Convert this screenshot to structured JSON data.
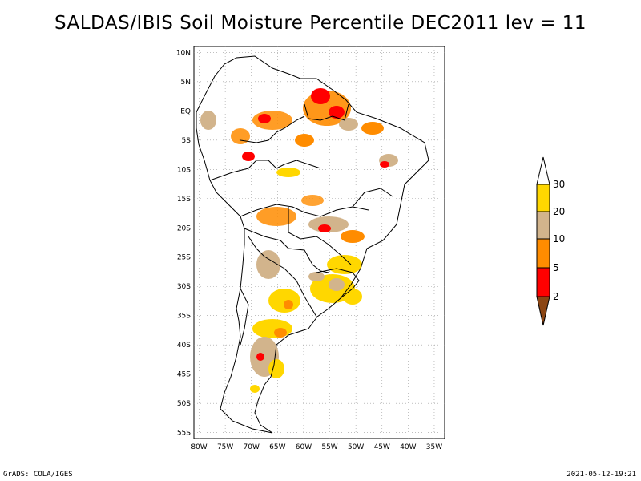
{
  "title": "SALDAS/IBIS Soil Moisture Percentile DEC2011 lev = 11",
  "footer": {
    "left": "GrADS: COLA/IGES",
    "right": "2021-05-12-19:21"
  },
  "map": {
    "lon_ticks": [
      "80W",
      "75W",
      "70W",
      "65W",
      "60W",
      "55W",
      "50W",
      "45W",
      "40W",
      "35W"
    ],
    "lat_ticks": [
      "10N",
      "5N",
      "EQ",
      "5S",
      "10S",
      "15S",
      "20S",
      "25S",
      "30S",
      "35S",
      "40S",
      "45S",
      "50S",
      "55S"
    ],
    "lon_values": [
      -80,
      -75,
      -70,
      -65,
      -60,
      -55,
      -50,
      -45,
      -40,
      -35
    ],
    "lat_values": [
      10,
      5,
      0,
      -5,
      -10,
      -15,
      -20,
      -25,
      -30,
      -35,
      -40,
      -45,
      -50,
      -55
    ],
    "lon_range": [
      -81,
      -33
    ],
    "lat_range": [
      -56,
      11
    ],
    "grid": true
  },
  "colorbar": {
    "labels": [
      "2",
      "5",
      "10",
      "20",
      "30"
    ],
    "bins": [
      {
        "range": "<2",
        "color": "#8B4513"
      },
      {
        "range": "2-5",
        "color": "#ff0000"
      },
      {
        "range": "5-10",
        "color": "#ff8c00"
      },
      {
        "range": "10-20",
        "color": "#d2b48c"
      },
      {
        "range": "20-30",
        "color": "#ffd700"
      },
      {
        "range": ">30",
        "color": "#ffffff"
      }
    ]
  }
}
